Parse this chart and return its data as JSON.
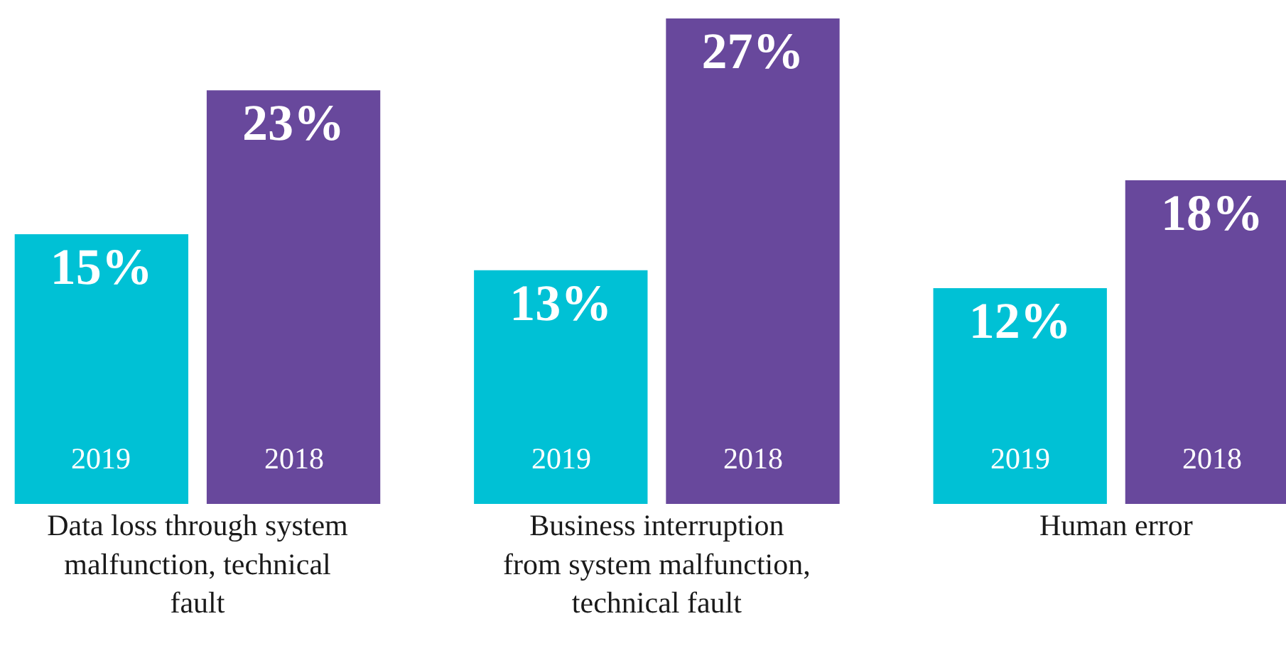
{
  "chart_data": {
    "type": "bar",
    "categories": [
      "Data loss through system malfunction, technical fault",
      "Business interruption from system malfunction, technical fault",
      "Human error"
    ],
    "series": [
      {
        "name": "2019",
        "color": "#00c1d5",
        "values": [
          15,
          13,
          12
        ],
        "value_labels": [
          "15%",
          "13%",
          "12%"
        ]
      },
      {
        "name": "2018",
        "color": "#68489c",
        "values": [
          23,
          27,
          18
        ],
        "value_labels": [
          "23%",
          "27%",
          "18%"
        ]
      }
    ],
    "ylim": [
      0,
      27
    ],
    "legend": false,
    "grid": false,
    "tick_labels": "x"
  }
}
